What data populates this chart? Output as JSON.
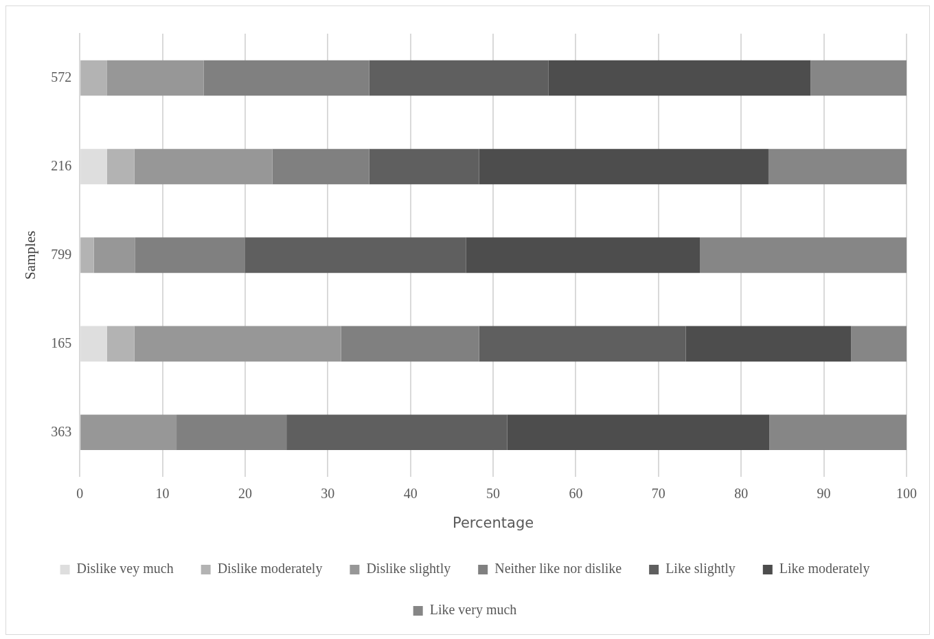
{
  "chart_data": {
    "type": "bar",
    "orientation": "horizontal",
    "stacked": true,
    "xlabel": "Percentage",
    "ylabel": "Samples",
    "categories": [
      "572",
      "216",
      "799",
      "165",
      "363"
    ],
    "series": [
      {
        "name": "Dislike vey much",
        "color": "#dedede",
        "values": [
          0,
          3.3,
          0,
          3.3,
          0
        ]
      },
      {
        "name": "Dislike moderately",
        "color": "#b3b3b3",
        "values": [
          3.3,
          3.3,
          1.7,
          3.3,
          0
        ]
      },
      {
        "name": "Dislike slightly",
        "color": "#979797",
        "values": [
          11.7,
          16.7,
          5,
          25,
          11.7
        ]
      },
      {
        "name": "Neither like nor dislike",
        "color": "#808080",
        "values": [
          20,
          11.7,
          13.3,
          16.7,
          13.3
        ]
      },
      {
        "name": "Like slightly",
        "color": "#5f5f5f",
        "values": [
          21.7,
          13.3,
          26.7,
          25,
          26.7
        ]
      },
      {
        "name": "Like moderately",
        "color": "#4d4d4d",
        "values": [
          31.7,
          35,
          28.3,
          20,
          31.7
        ]
      },
      {
        "name": "Like very much",
        "color": "#868686",
        "values": [
          11.6,
          16.7,
          25,
          6.7,
          16.6
        ]
      }
    ],
    "xlim": [
      0,
      100
    ],
    "xticks": [
      0,
      10,
      20,
      30,
      40,
      50,
      60,
      70,
      80,
      90,
      100
    ],
    "grid": "x",
    "legend": "bottom"
  }
}
